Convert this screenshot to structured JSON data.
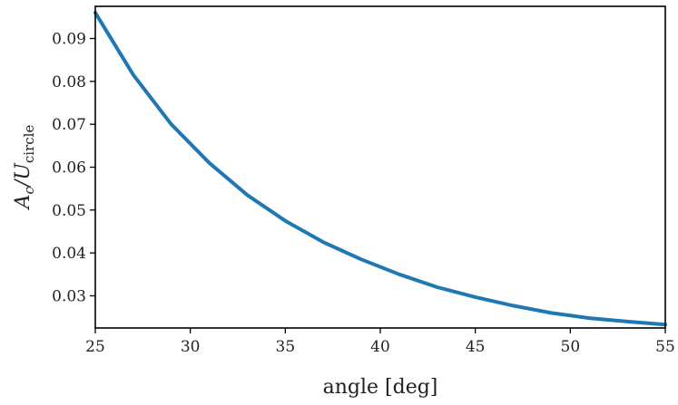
{
  "chart_data": {
    "type": "line",
    "xlabel": "angle [deg]",
    "ylabel_main": "A",
    "ylabel_sub": "c",
    "ylabel_mid": "/U",
    "ylabel_sub2": "circle",
    "xlim": [
      25,
      55
    ],
    "ylim": [
      0.0225,
      0.0975
    ],
    "xticks": [
      25,
      30,
      35,
      40,
      45,
      50,
      55
    ],
    "yticks": [
      0.03,
      0.04,
      0.05,
      0.06,
      0.07,
      0.08,
      0.09
    ],
    "xtick_labels": [
      "25",
      "30",
      "35",
      "40",
      "45",
      "50",
      "55"
    ],
    "ytick_labels": [
      "0.03",
      "0.04",
      "0.05",
      "0.06",
      "0.07",
      "0.08",
      "0.09"
    ],
    "grid": false,
    "line_color": "#1f77b4",
    "series": [
      {
        "x": [
          25,
          27,
          29,
          31,
          33,
          35,
          37,
          39,
          41,
          43,
          45,
          47,
          49,
          51,
          53,
          55
        ],
        "y": [
          0.096,
          0.0815,
          0.07,
          0.061,
          0.0535,
          0.0475,
          0.0425,
          0.0385,
          0.035,
          0.032,
          0.0297,
          0.0277,
          0.026,
          0.0248,
          0.024,
          0.0233
        ]
      }
    ]
  }
}
